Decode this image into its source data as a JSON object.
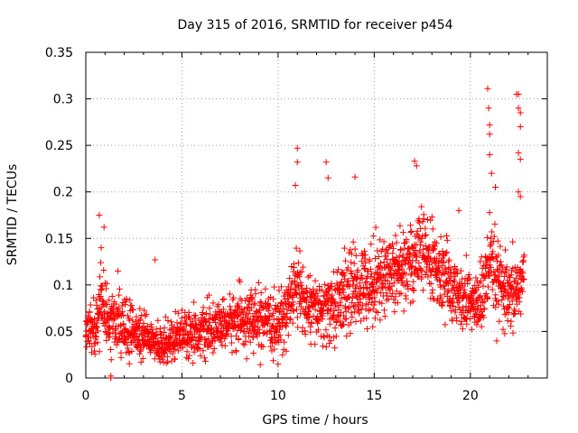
{
  "chart_data": {
    "type": "scatter",
    "title": "Day 315 of 2016, SRMTID for receiver p454",
    "xlabel": "GPS time / hours",
    "ylabel": "SRMTID / TECUs",
    "xlim": [
      0,
      24
    ],
    "ylim": [
      0,
      0.35
    ],
    "xticks": [
      0,
      5,
      10,
      15,
      20
    ],
    "xtick_labels": [
      "0",
      "5",
      "10",
      "15",
      "20"
    ],
    "yticks": [
      0,
      0.05,
      0.1,
      0.15,
      0.2,
      0.25,
      0.3,
      0.35
    ],
    "ytick_labels": [
      "0",
      "0.05",
      "0.1",
      "0.15",
      "0.2",
      "0.25",
      "0.3",
      "0.35"
    ],
    "grid": true,
    "marker": "plus",
    "color": "#ff0000",
    "series": [
      {
        "name": "SRMTID",
        "trend": [
          {
            "x": 0.0,
            "y": 0.055,
            "spread": 0.02
          },
          {
            "x": 0.5,
            "y": 0.05,
            "spread": 0.02
          },
          {
            "x": 0.8,
            "y": 0.085,
            "spread": 0.03
          },
          {
            "x": 1.2,
            "y": 0.06,
            "spread": 0.025
          },
          {
            "x": 2.0,
            "y": 0.055,
            "spread": 0.025
          },
          {
            "x": 3.0,
            "y": 0.045,
            "spread": 0.02
          },
          {
            "x": 4.0,
            "y": 0.035,
            "spread": 0.018
          },
          {
            "x": 5.0,
            "y": 0.05,
            "spread": 0.02
          },
          {
            "x": 6.0,
            "y": 0.048,
            "spread": 0.02
          },
          {
            "x": 7.0,
            "y": 0.055,
            "spread": 0.02
          },
          {
            "x": 8.0,
            "y": 0.065,
            "spread": 0.025
          },
          {
            "x": 9.0,
            "y": 0.06,
            "spread": 0.025
          },
          {
            "x": 10.0,
            "y": 0.055,
            "spread": 0.025
          },
          {
            "x": 11.0,
            "y": 0.1,
            "spread": 0.035
          },
          {
            "x": 11.5,
            "y": 0.075,
            "spread": 0.025
          },
          {
            "x": 12.5,
            "y": 0.07,
            "spread": 0.03
          },
          {
            "x": 13.5,
            "y": 0.09,
            "spread": 0.035
          },
          {
            "x": 14.5,
            "y": 0.1,
            "spread": 0.035
          },
          {
            "x": 15.5,
            "y": 0.11,
            "spread": 0.035
          },
          {
            "x": 16.5,
            "y": 0.12,
            "spread": 0.035
          },
          {
            "x": 17.5,
            "y": 0.135,
            "spread": 0.035
          },
          {
            "x": 18.5,
            "y": 0.11,
            "spread": 0.035
          },
          {
            "x": 19.5,
            "y": 0.085,
            "spread": 0.025
          },
          {
            "x": 20.5,
            "y": 0.08,
            "spread": 0.03
          },
          {
            "x": 21.0,
            "y": 0.12,
            "spread": 0.04
          },
          {
            "x": 21.5,
            "y": 0.1,
            "spread": 0.035
          },
          {
            "x": 22.0,
            "y": 0.08,
            "spread": 0.03
          },
          {
            "x": 22.8,
            "y": 0.11,
            "spread": 0.035
          }
        ],
        "outliers": [
          {
            "x": 0.7,
            "y": 0.175
          },
          {
            "x": 0.95,
            "y": 0.162
          },
          {
            "x": 0.8,
            "y": 0.14
          },
          {
            "x": 1.3,
            "y": 0.0
          },
          {
            "x": 1.3,
            "y": 0.002
          },
          {
            "x": 3.6,
            "y": 0.127
          },
          {
            "x": 11.0,
            "y": 0.247
          },
          {
            "x": 11.0,
            "y": 0.232
          },
          {
            "x": 10.9,
            "y": 0.207
          },
          {
            "x": 12.5,
            "y": 0.232
          },
          {
            "x": 12.6,
            "y": 0.215
          },
          {
            "x": 14.0,
            "y": 0.216
          },
          {
            "x": 17.1,
            "y": 0.233
          },
          {
            "x": 17.2,
            "y": 0.228
          },
          {
            "x": 20.9,
            "y": 0.311
          },
          {
            "x": 20.95,
            "y": 0.29
          },
          {
            "x": 21.0,
            "y": 0.272
          },
          {
            "x": 21.0,
            "y": 0.262
          },
          {
            "x": 21.0,
            "y": 0.24
          },
          {
            "x": 21.1,
            "y": 0.22
          },
          {
            "x": 21.3,
            "y": 0.205
          },
          {
            "x": 22.4,
            "y": 0.305
          },
          {
            "x": 22.5,
            "y": 0.305
          },
          {
            "x": 22.5,
            "y": 0.29
          },
          {
            "x": 22.6,
            "y": 0.285
          },
          {
            "x": 22.6,
            "y": 0.27
          },
          {
            "x": 22.5,
            "y": 0.242
          },
          {
            "x": 22.6,
            "y": 0.235
          },
          {
            "x": 22.5,
            "y": 0.2
          },
          {
            "x": 22.6,
            "y": 0.195
          },
          {
            "x": 19.4,
            "y": 0.18
          }
        ]
      }
    ]
  }
}
